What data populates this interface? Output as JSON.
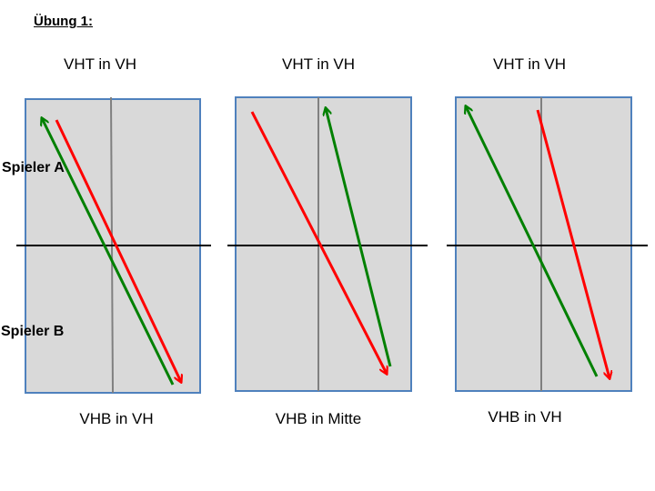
{
  "title": "Übung 1:",
  "player_labels": {
    "a": "Spieler A",
    "b": "Spieler B"
  },
  "colors": {
    "court_fill": "#d9d9d9",
    "court_border": "#4f81bd",
    "center_line": "#808080",
    "net": "#000000",
    "red_arrow": "#ff0000",
    "green_arrow": "#008000"
  },
  "panels": [
    {
      "top_label": "VHT in VH",
      "bottom_label": "VHB in VH"
    },
    {
      "top_label": "VHT in VH",
      "bottom_label": "VHB in Mitte"
    },
    {
      "top_label": "VHT in VH",
      "bottom_label": "VHB in VH"
    }
  ]
}
